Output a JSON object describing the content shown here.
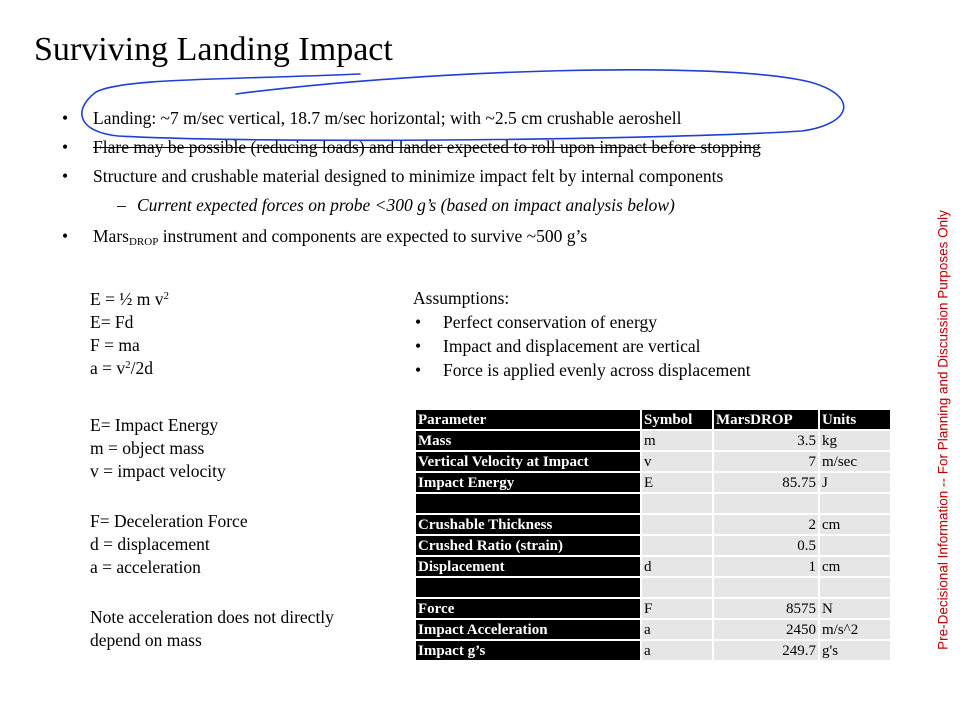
{
  "title": "Surviving Landing Impact",
  "bullets": [
    {
      "text": "Landing: ~7 m/sec vertical, 18.7 m/sec horizontal; with ~2.5 cm crushable aeroshell"
    },
    {
      "text": "Flare may be possible (reducing loads) and lander expected to roll upon impact before stopping"
    },
    {
      "text": "Structure and crushable material designed to minimize impact felt by internal components"
    }
  ],
  "sub_bullet": "Current expected forces on probe <300 g’s (based on impact analysis below)",
  "last_bullet": {
    "prefix": "Mars",
    "sub": "DROP",
    "suffix": " instrument and components are expected to survive ~500 g’s"
  },
  "equations": {
    "e_base": "E = ½ m v",
    "e_exp": "2",
    "e_fd": "E= Fd",
    "f_ma": "F = ma",
    "a_base": "a = v",
    "a_exp": "2",
    "a_tail": "/2d"
  },
  "definitions": {
    "energy": [
      "E= Impact Energy",
      "m = object mass",
      "v = impact velocity"
    ],
    "force": [
      "F= Deceleration Force",
      "d = displacement",
      "a = acceleration"
    ],
    "note": [
      "Note acceleration does not directly",
      "depend on mass"
    ]
  },
  "assumptions": {
    "heading": "Assumptions:",
    "items": [
      "Perfect conservation of energy",
      "Impact and displacement are vertical",
      "Force is applied evenly across displacement"
    ]
  },
  "table": {
    "headers": [
      "Parameter",
      "Symbol",
      "MarsDROP",
      "Units"
    ],
    "rows": [
      [
        "Mass",
        "m",
        "3.5",
        "kg"
      ],
      [
        "Vertical Velocity at Impact",
        "v",
        "7",
        "m/sec"
      ],
      [
        "Impact Energy",
        "E",
        "85.75",
        "J"
      ],
      [
        "",
        "",
        "",
        ""
      ],
      [
        "Crushable Thickness",
        "",
        "2",
        "cm"
      ],
      [
        "Crushed Ratio (strain)",
        "",
        "0.5",
        ""
      ],
      [
        "Displacement",
        "d",
        "1",
        "cm"
      ],
      [
        "",
        "",
        "",
        ""
      ],
      [
        "Force",
        "F",
        "8575",
        "N"
      ],
      [
        "Impact Acceleration",
        "a",
        "2450",
        "m/s^2"
      ],
      [
        "Impact g’s",
        "a",
        "249.7",
        "g's"
      ]
    ]
  },
  "sidebar_note": "Pre-Decisional Information -- For Planning and Discussion Purposes Only",
  "colors": {
    "sidebar_text": "#c00000",
    "annotation_ink": "#1f3fd6",
    "table_header_bg": "#000000",
    "table_cell_bg": "#e6e6e6"
  }
}
